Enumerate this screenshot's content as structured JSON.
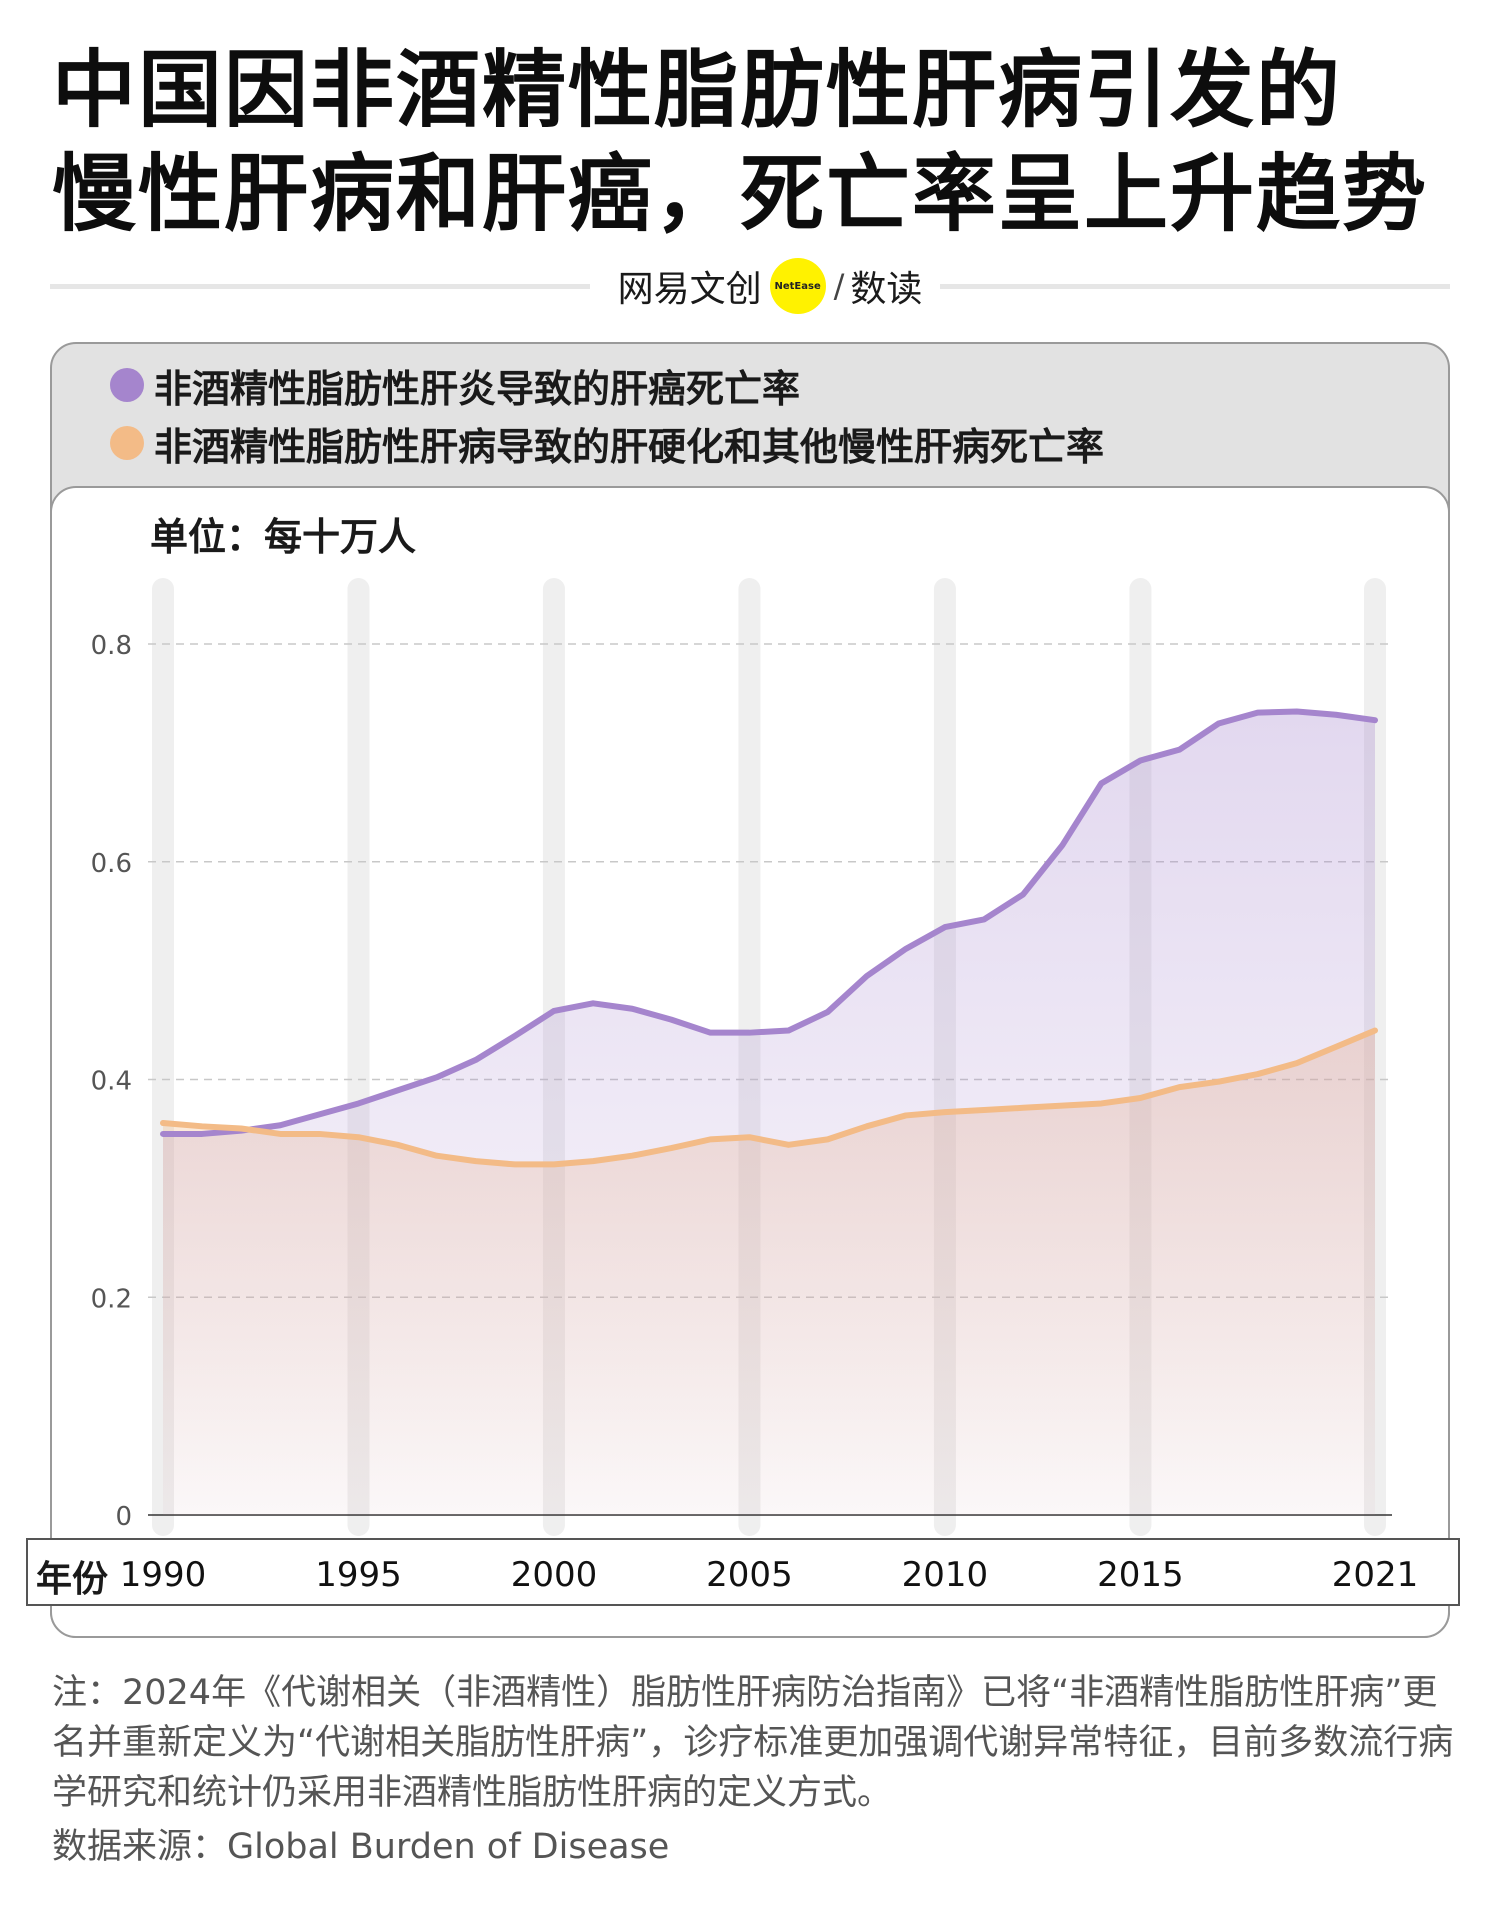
{
  "title_line1": "中国因非酒精性脂肪性肝病引发的",
  "title_line2": "慢性肝病和肝癌，死亡率呈上升趋势",
  "brand": {
    "name": "网易文创",
    "logo_text": "NetEase",
    "slash": "/",
    "column": "数读"
  },
  "colors": {
    "purple": "#a585cd",
    "orange": "#f3bb87",
    "grid": "#c8c8c8",
    "band": "#efefef"
  },
  "chart_data": {
    "type": "area",
    "unit_label": "单位：每十万人",
    "xlabel": "年份",
    "x": [
      1990,
      1991,
      1992,
      1993,
      1994,
      1995,
      1996,
      1997,
      1998,
      1999,
      2000,
      2001,
      2002,
      2003,
      2004,
      2005,
      2006,
      2007,
      2008,
      2009,
      2010,
      2011,
      2012,
      2013,
      2014,
      2015,
      2016,
      2017,
      2018,
      2019,
      2020,
      2021
    ],
    "x_ticks": [
      1990,
      1995,
      2000,
      2005,
      2010,
      2015,
      2021
    ],
    "y_ticks": [
      0,
      0.2,
      0.4,
      0.6,
      0.8
    ],
    "y_tick_labels": [
      "0",
      "0.2",
      "0.4",
      "0.6",
      "0.8"
    ],
    "ylim": [
      0,
      0.8
    ],
    "grid": "horizontal dashed",
    "legend_position": "top-left",
    "series": [
      {
        "name": "非酒精性脂肪性肝炎导致的肝癌死亡率",
        "color": "#a585cd",
        "values": [
          0.35,
          0.35,
          0.353,
          0.358,
          0.368,
          0.378,
          0.39,
          0.402,
          0.418,
          0.44,
          0.463,
          0.47,
          0.465,
          0.455,
          0.443,
          0.443,
          0.445,
          0.462,
          0.495,
          0.52,
          0.54,
          0.547,
          0.57,
          0.615,
          0.672,
          0.693,
          0.703,
          0.727,
          0.737,
          0.738,
          0.735,
          0.73
        ]
      },
      {
        "name": "非酒精性脂肪性肝病导致的肝硬化和其他慢性肝病死亡率",
        "color": "#f3bb87",
        "values": [
          0.36,
          0.357,
          0.355,
          0.35,
          0.35,
          0.347,
          0.34,
          0.33,
          0.325,
          0.322,
          0.322,
          0.325,
          0.33,
          0.337,
          0.345,
          0.347,
          0.34,
          0.345,
          0.357,
          0.367,
          0.37,
          0.372,
          0.374,
          0.376,
          0.378,
          0.383,
          0.393,
          0.398,
          0.405,
          0.415,
          0.43,
          0.445
        ]
      }
    ]
  },
  "note": "注：2024年《代谢相关（非酒精性）脂肪性肝病防治指南》已将“非酒精性脂肪性肝病”更名并重新定义为“代谢相关脂肪性肝病”，诊疗标准更加强调代谢异常特征，目前多数流行病学研究和统计仍采用非酒精性脂肪性肝病的定义方式。",
  "source": "数据来源：Global Burden of Disease"
}
